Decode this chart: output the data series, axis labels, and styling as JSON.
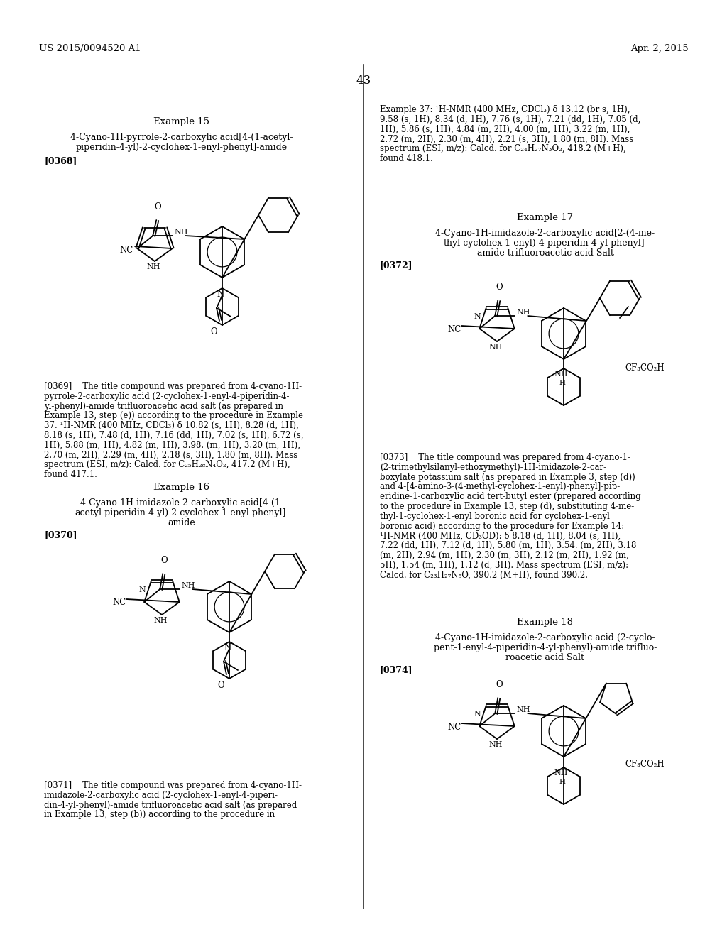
{
  "page_number": "43",
  "header_left": "US 2015/0094520 A1",
  "header_right": "Apr. 2, 2015",
  "background_color": "#ffffff",
  "example15_title": "Example 15",
  "example15_line1": "4-Cyano-1H-pyrrole-2-carboxylic acid[4-(1-acetyl-",
  "example15_line2": "piperidin-4-yl)-2-cyclohex-1-enyl-phenyl]-amide",
  "example15_ref": "[0368]",
  "example16_title": "Example 16",
  "example16_line1": "4-Cyano-1H-imidazole-2-carboxylic acid[4-(1-",
  "example16_line2": "acetyl-piperidin-4-yl)-2-cyclohex-1-enyl-phenyl]-",
  "example16_line3": "amide",
  "example16_ref": "[0370]",
  "example17_title": "Example 17",
  "example17_line1": "4-Cyano-1H-imidazole-2-carboxylic acid[2-(4-me-",
  "example17_line2": "thyl-cyclohex-1-enyl)-4-piperidin-4-yl-phenyl]-",
  "example17_line3": "amide trifluoroacetic acid Salt",
  "example17_ref": "[0372]",
  "example18_title": "Example 18",
  "example18_line1": "4-Cyano-1H-imidazole-2-carboxylic acid (2-cyclo-",
  "example18_line2": "pent-1-enyl-4-piperidin-4-yl-phenyl)-amide trifluo-",
  "example18_line3": "roacetic acid Salt",
  "example18_ref": "[0374]",
  "ex37_nmr_line1": "Example 37: ¹H-NMR (400 MHz, CDCl₃) δ 13.12 (br s, 1H),",
  "ex37_nmr_line2": "9.58 (s, 1H), 8.34 (d, 1H), 7.76 (s, 1H), 7.21 (dd, 1H), 7.05 (d,",
  "ex37_nmr_line3": "1H), 5.86 (s, 1H), 4.84 (m, 2H), 4.00 (m, 1H), 3.22 (m, 1H),",
  "ex37_nmr_line4": "2.72 (m, 2H), 2.30 (m, 4H), 2.21 (s, 3H), 1.80 (m, 8H). Mass",
  "ex37_nmr_line5": "spectrum (ESI, m/z): Calcd. for C₂₄H₂₇N₃O₂, 418.2 (M+H),",
  "ex37_nmr_line6": "found 418.1.",
  "p369_line1": "[0369]    The title compound was prepared from 4-cyano-1H-",
  "p369_line2": "pyrrole-2-carboxylic acid (2-cyclohex-1-enyl-4-piperidin-4-",
  "p369_line3": "yl-phenyl)-amide trifluoroacetic acid salt (as prepared in",
  "p369_line4": "Example 13, step (e)) according to the procedure in Example",
  "p369_line5": "37. ¹H-NMR (400 MHz, CDCl₃) δ 10.82 (s, 1H), 8.28 (d, 1H),",
  "p369_line6": "8.18 (s, 1H), 7.48 (d, 1H), 7.16 (dd, 1H), 7.02 (s, 1H), 6.72 (s,",
  "p369_line7": "1H), 5.88 (m, 1H), 4.82 (m, 1H), 3.98. (m, 1H), 3.20 (m, 1H),",
  "p369_line8": "2.70 (m, 2H), 2.29 (m, 4H), 2.18 (s, 3H), 1.80 (m, 8H). Mass",
  "p369_line9": "spectrum (ESI, m/z): Calcd. for C₂₅H₂₈N₄O₂, 417.2 (M+H),",
  "p369_line10": "found 417.1.",
  "p371_line1": "[0371]    The title compound was prepared from 4-cyano-1H-",
  "p371_line2": "imidazole-2-carboxylic acid (2-cyclohex-1-enyl-4-piperi-",
  "p371_line3": "din-4-yl-phenyl)-amide trifluoroacetic acid salt (as prepared",
  "p371_line4": "in Example 13, step (b)) according to the procedure in",
  "p373_line1": "[0373]    The title compound was prepared from 4-cyano-1-",
  "p373_line2": "(2-trimethylsilanyl-ethoxymethyl)-1H-imidazole-2-car-",
  "p373_line3": "boxylate potassium salt (as prepared in Example 3, step (d))",
  "p373_line4": "and 4-[4-amino-3-(4-methyl-cyclohex-1-enyl)-phenyl]-pip-",
  "p373_line5": "eridine-1-carboxylic acid tert-butyl ester (prepared according",
  "p373_line6": "to the procedure in Example 13, step (d), substituting 4-me-",
  "p373_line7": "thyl-1-cyclohex-1-enyl boronic acid for cyclohex-1-enyl",
  "p373_line8": "boronic acid) according to the procedure for Example 14:",
  "p373_line9": "¹H-NMR (400 MHz, CD₃OD): δ 8.18 (d, 1H), 8.04 (s, 1H),",
  "p373_line10": "7.22 (dd, 1H), 7.12 (d, 1H), 5.80 (m, 1H), 3.54. (m, 2H), 3.18",
  "p373_line11": "(m, 2H), 2.94 (m, 1H), 2.30 (m, 3H), 2.12 (m, 2H), 1.92 (m,",
  "p373_line12": "5H), 1.54 (m, 1H), 1.12 (d, 3H). Mass spectrum (ESI, m/z):",
  "p373_line13": "Calcd. for C₂₃H₂₇N₅O, 390.2 (M+H), found 390.2."
}
